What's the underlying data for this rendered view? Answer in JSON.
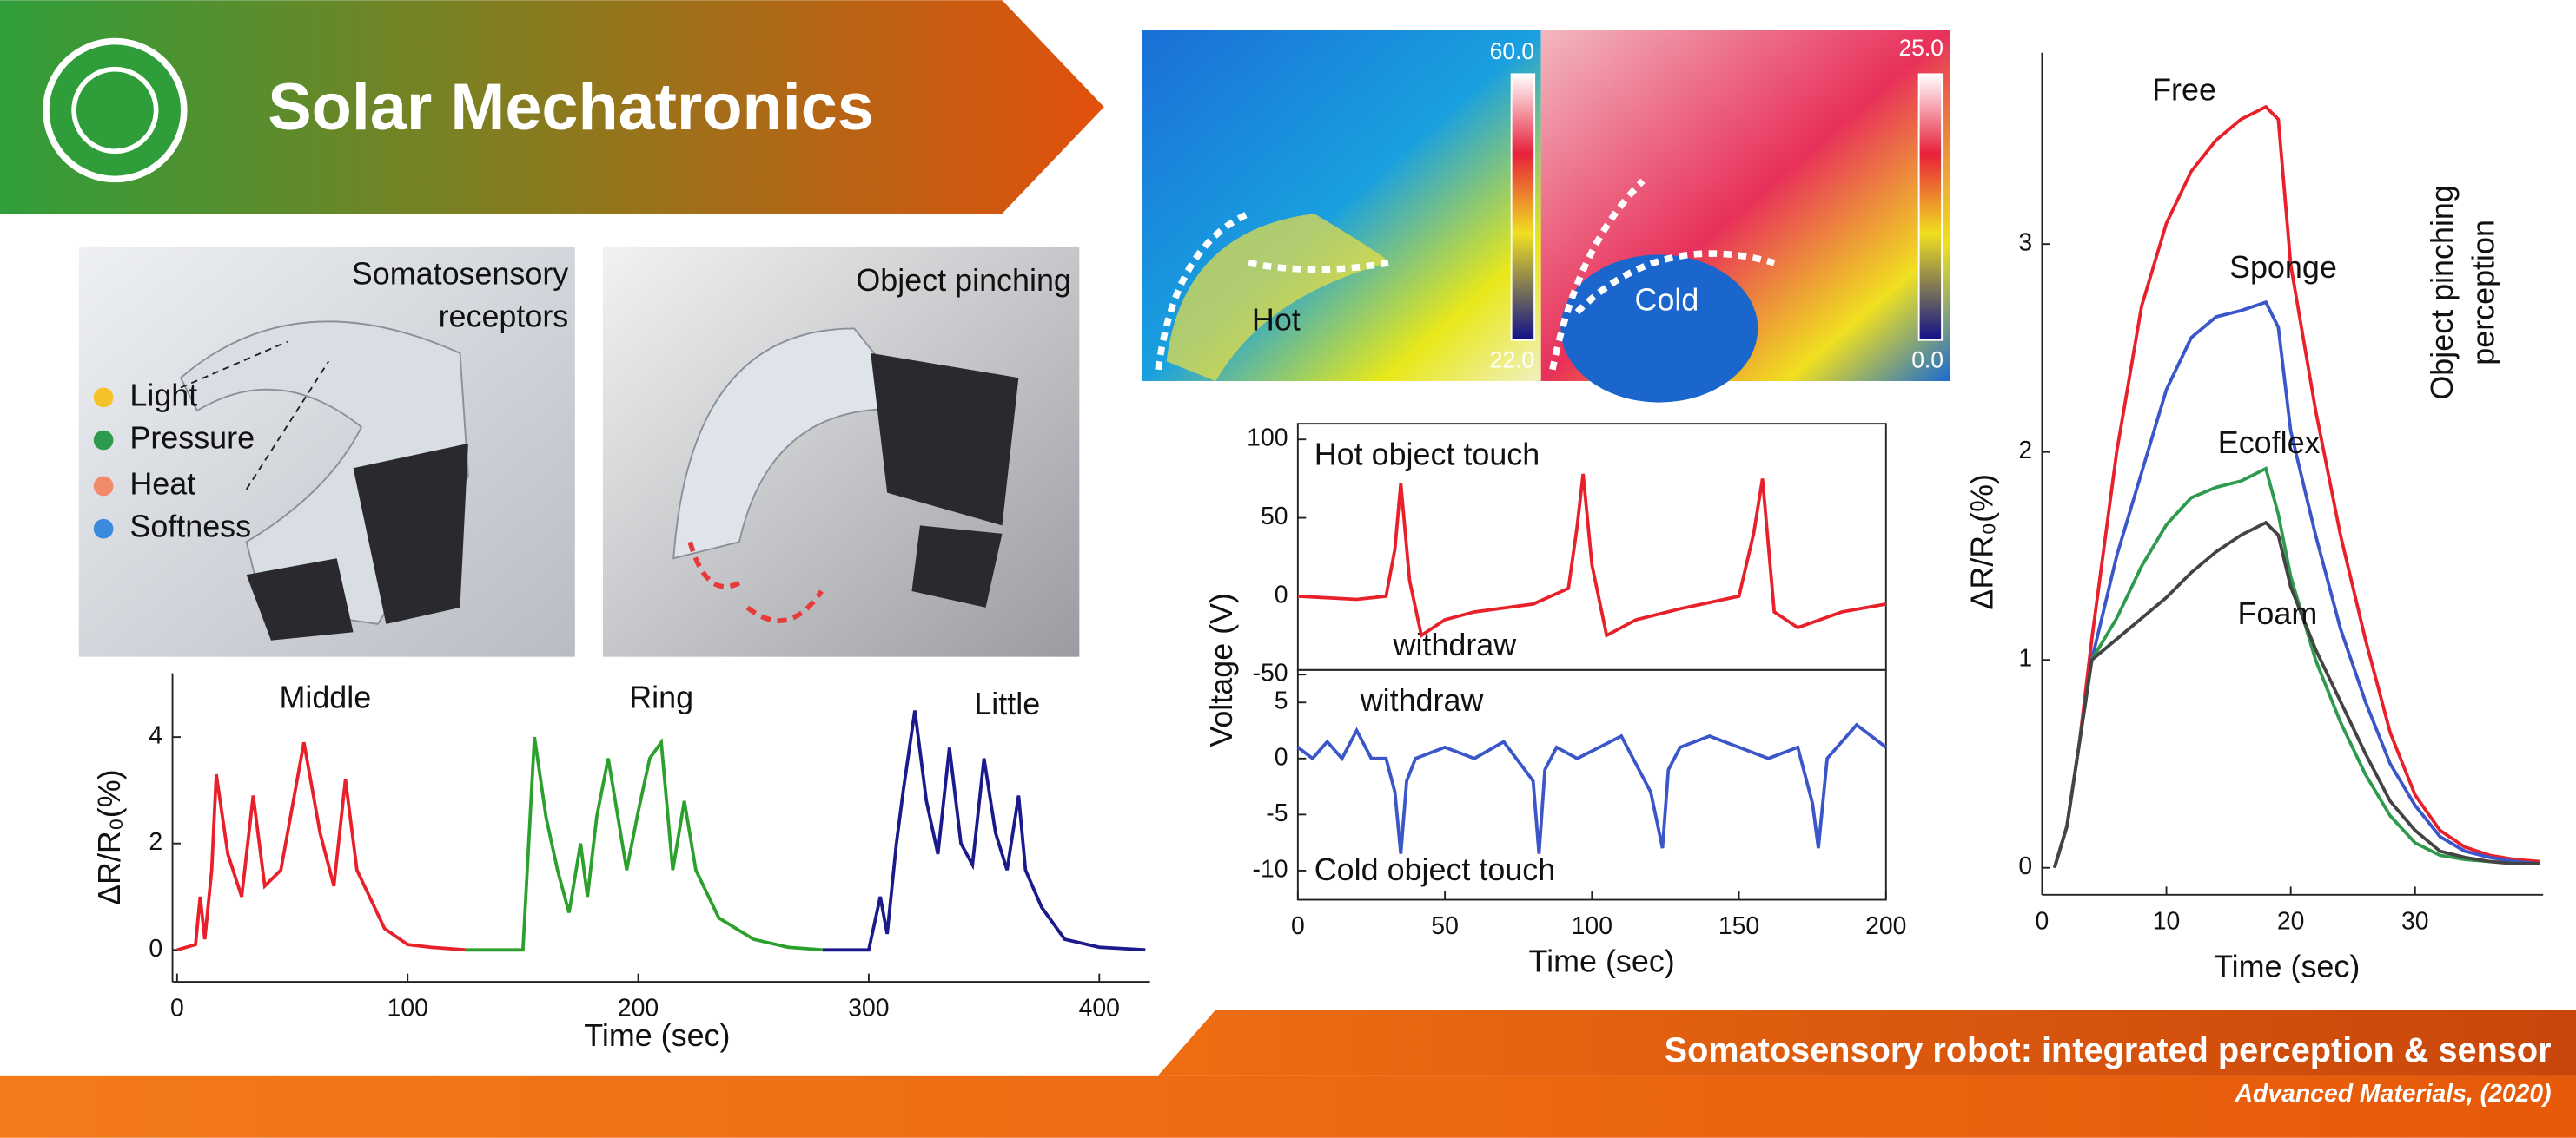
{
  "header": {
    "title": "Solar Mechatronics"
  },
  "photos": [
    {
      "caption": [
        "Somatosensory",
        "receptors"
      ],
      "legend": [
        "Light",
        "Pressure",
        "Heat",
        "Softness"
      ]
    },
    {
      "caption": [
        "Object pinching"
      ]
    }
  ],
  "thermal": [
    {
      "max": "60.0",
      "min": "22.0",
      "label": "Hot"
    },
    {
      "max": "25.0",
      "min": "0.0",
      "label": "Cold"
    }
  ],
  "footer": {
    "title": "Somatosensory robot: integrated perception & sensor",
    "citation": "Advanced Materials, (2020)"
  },
  "chart_data": [
    {
      "type": "line",
      "xlabel": "Time (sec)",
      "ylabel": "ΔR/R₀(%)",
      "xlim": [
        -2,
        422
      ],
      "xticks": [
        0,
        100,
        200,
        300,
        400
      ],
      "ylim": [
        -0.6,
        5.2
      ],
      "yticks": [
        0,
        2,
        4
      ],
      "series": [
        {
          "name": "Middle",
          "color": "#e8202a",
          "x": [
            0,
            8,
            10,
            12,
            15,
            17,
            22,
            28,
            33,
            38,
            45,
            55,
            62,
            68,
            73,
            78,
            90,
            100,
            110,
            125
          ],
          "values": [
            0,
            0.1,
            1.0,
            0.2,
            1.5,
            3.3,
            1.8,
            1.0,
            2.9,
            1.2,
            1.5,
            3.9,
            2.2,
            1.2,
            3.2,
            1.5,
            0.4,
            0.1,
            0.05,
            0
          ]
        },
        {
          "name": "Ring",
          "color": "#2ca02c",
          "x": [
            125,
            150,
            155,
            160,
            165,
            170,
            175,
            178,
            182,
            187,
            195,
            200,
            205,
            210,
            215,
            220,
            225,
            235,
            250,
            265,
            280
          ],
          "values": [
            0,
            0,
            4.0,
            2.5,
            1.5,
            0.7,
            2.0,
            1.0,
            2.5,
            3.6,
            1.5,
            2.6,
            3.6,
            3.9,
            1.5,
            2.8,
            1.5,
            0.6,
            0.2,
            0.05,
            0
          ]
        },
        {
          "name": "Little",
          "color": "#1a1a8c",
          "x": [
            280,
            300,
            305,
            308,
            312,
            315,
            320,
            325,
            330,
            335,
            340,
            345,
            350,
            355,
            360,
            365,
            368,
            375,
            385,
            400,
            420
          ],
          "values": [
            0,
            0,
            1.0,
            0.3,
            2.0,
            3.0,
            4.5,
            2.8,
            1.8,
            3.8,
            2.0,
            1.6,
            3.6,
            2.2,
            1.5,
            2.9,
            1.5,
            0.8,
            0.2,
            0.05,
            0
          ]
        }
      ]
    },
    {
      "type": "line",
      "annotations": [
        "Hot object touch",
        "withdraw"
      ],
      "xlim": [
        0,
        200
      ],
      "ylim": [
        -47,
        110
      ],
      "yticks": [
        -50,
        0,
        50,
        100
      ],
      "series": [
        {
          "color": "#e8202a",
          "x": [
            0,
            20,
            30,
            33,
            35,
            38,
            42,
            50,
            60,
            80,
            92,
            95,
            97,
            100,
            105,
            115,
            130,
            150,
            155,
            158,
            162,
            170,
            185,
            200
          ],
          "values": [
            0,
            -2,
            0,
            30,
            72,
            10,
            -25,
            -15,
            -10,
            -5,
            5,
            45,
            78,
            20,
            -25,
            -15,
            -8,
            0,
            40,
            75,
            -10,
            -20,
            -10,
            -5
          ]
        }
      ]
    },
    {
      "type": "line",
      "xlabel": "Time (sec)",
      "ylabel": "Voltage (V)",
      "annotations": [
        "withdraw",
        "Cold object touch"
      ],
      "xlim": [
        0,
        200
      ],
      "xticks": [
        0,
        50,
        100,
        150,
        200
      ],
      "ylim": [
        -12.6,
        7.9
      ],
      "yticks": [
        -10,
        -5,
        0,
        5
      ],
      "series": [
        {
          "color": "#3a56c8",
          "x": [
            0,
            5,
            10,
            15,
            20,
            25,
            30,
            33,
            35,
            37,
            40,
            50,
            60,
            70,
            80,
            82,
            84,
            88,
            95,
            110,
            120,
            124,
            126,
            130,
            140,
            150,
            160,
            170,
            175,
            177,
            180,
            190,
            200
          ],
          "values": [
            1,
            0,
            1.5,
            0,
            2.5,
            0,
            0,
            -3,
            -8.5,
            -2,
            0,
            1,
            0,
            1.5,
            -2,
            -8.5,
            -1,
            1,
            0,
            2,
            -3,
            -8,
            -1,
            1,
            2,
            1,
            0,
            1,
            -4,
            -8,
            0,
            3,
            1
          ]
        }
      ]
    },
    {
      "type": "line",
      "xlabel": "Time (sec)",
      "ylabel": "ΔR/R₀(%)",
      "annotations": [
        "Object pinching",
        "perception"
      ],
      "xlim": [
        0,
        40.3
      ],
      "xticks": [
        0,
        10,
        20,
        30
      ],
      "ylim": [
        -0.13,
        3.92
      ],
      "yticks": [
        0,
        1,
        2,
        3
      ],
      "x": [
        1,
        2,
        3,
        4,
        6,
        8,
        10,
        12,
        14,
        16,
        18,
        19,
        20,
        22,
        24,
        26,
        28,
        30,
        32,
        34,
        36,
        38,
        40
      ],
      "series": [
        {
          "name": "Free",
          "color": "#e8202a",
          "values": [
            0,
            0.2,
            0.6,
            1.1,
            2.0,
            2.7,
            3.1,
            3.35,
            3.5,
            3.6,
            3.66,
            3.6,
            2.9,
            2.2,
            1.6,
            1.1,
            0.65,
            0.35,
            0.18,
            0.1,
            0.06,
            0.04,
            0.03
          ]
        },
        {
          "name": "Sponge",
          "color": "#3a56c8",
          "values": [
            0,
            0.2,
            0.6,
            1.0,
            1.5,
            1.9,
            2.3,
            2.55,
            2.65,
            2.68,
            2.72,
            2.6,
            2.1,
            1.6,
            1.15,
            0.8,
            0.5,
            0.3,
            0.15,
            0.08,
            0.05,
            0.03,
            0.02
          ]
        },
        {
          "name": "Ecoflex",
          "color": "#2e9a4e",
          "values": [
            0,
            0.2,
            0.6,
            1.0,
            1.2,
            1.45,
            1.65,
            1.78,
            1.83,
            1.86,
            1.92,
            1.7,
            1.4,
            1.0,
            0.7,
            0.45,
            0.25,
            0.12,
            0.06,
            0.04,
            0.03,
            0.02,
            0.02
          ]
        },
        {
          "name": "Foam",
          "color": "#444444",
          "values": [
            0,
            0.2,
            0.6,
            1.0,
            1.1,
            1.2,
            1.3,
            1.42,
            1.52,
            1.6,
            1.66,
            1.6,
            1.35,
            1.05,
            0.8,
            0.55,
            0.32,
            0.18,
            0.08,
            0.05,
            0.03,
            0.02,
            0.02
          ]
        }
      ]
    }
  ]
}
